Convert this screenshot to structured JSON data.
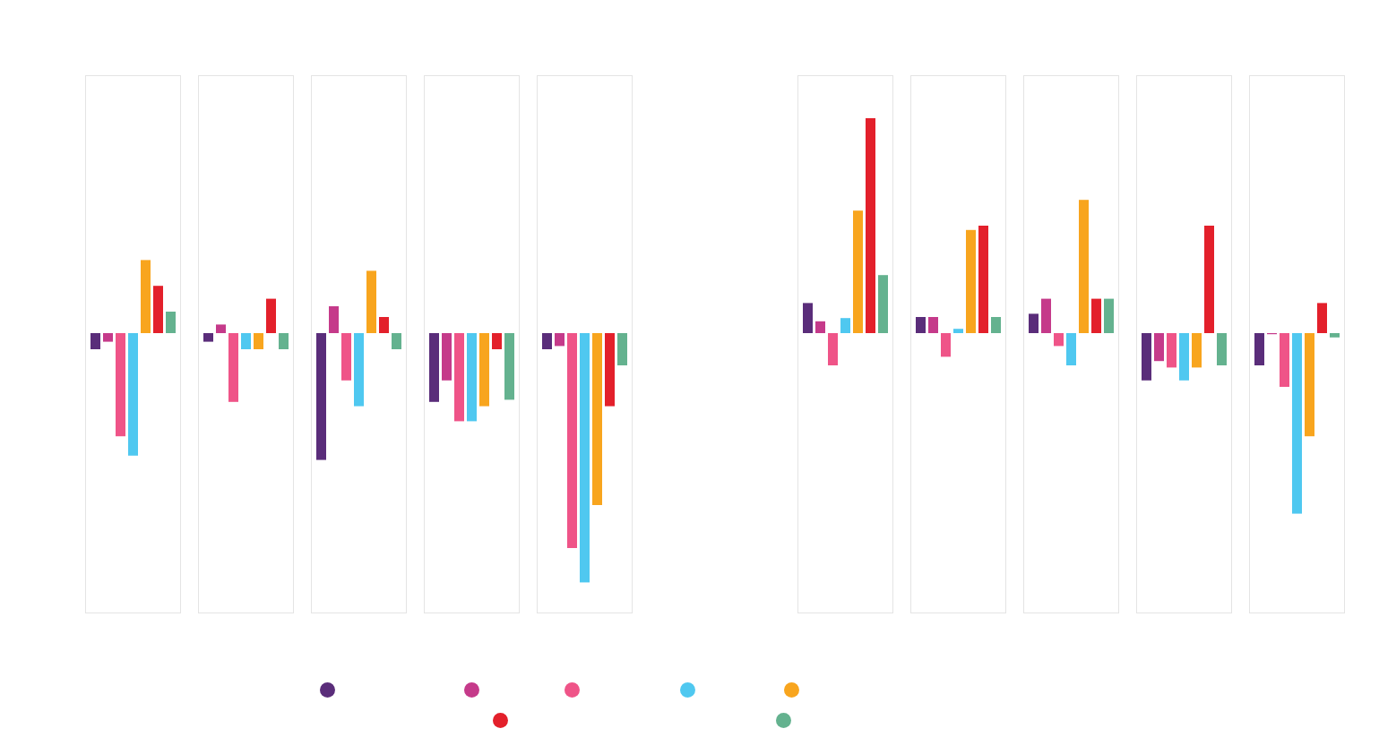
{
  "chart_data": [
    {
      "type": "bar",
      "categories": [
        null,
        null,
        null,
        null,
        null
      ],
      "ylim": [
        -13,
        12
      ],
      "yticks": [],
      "tick_labels": false,
      "series": [
        {
          "color": "#5a2d7a",
          "values": [
            -0.75,
            -0.4,
            -5.9,
            -3.2,
            -0.75
          ]
        },
        {
          "color": "#c53a8a",
          "values": [
            -0.4,
            0.4,
            1.25,
            -2.2,
            -0.6
          ]
        },
        {
          "color": "#ef5488",
          "values": [
            -4.8,
            -3.2,
            -2.2,
            -4.1,
            -10.0
          ]
        },
        {
          "color": "#4fc8f0",
          "values": [
            -5.7,
            -0.75,
            -3.4,
            -4.1,
            -11.6
          ]
        },
        {
          "color": "#f8a51e",
          "values": [
            3.4,
            -0.75,
            2.9,
            -3.4,
            -8.0
          ]
        },
        {
          "color": "#e3202b",
          "values": [
            2.2,
            1.6,
            0.75,
            -0.75,
            -3.4
          ]
        },
        {
          "color": "#64b28f",
          "values": [
            1.0,
            -0.75,
            -0.75,
            -3.1,
            -1.5
          ]
        }
      ]
    },
    {
      "type": "bar",
      "categories": [
        null,
        null,
        null,
        null,
        null
      ],
      "ylim": [
        -13,
        12
      ],
      "yticks": [],
      "tick_labels": false,
      "series": [
        {
          "color": "#5a2d7a",
          "values": [
            1.4,
            0.75,
            0.9,
            -2.2,
            -1.5
          ]
        },
        {
          "color": "#c53a8a",
          "values": [
            0.55,
            0.75,
            1.6,
            -1.3,
            -0.05
          ]
        },
        {
          "color": "#ef5488",
          "values": [
            -1.5,
            -1.1,
            -0.6,
            -1.6,
            -2.5
          ]
        },
        {
          "color": "#4fc8f0",
          "values": [
            0.7,
            0.2,
            -1.5,
            -2.2,
            -8.4
          ]
        },
        {
          "color": "#f8a51e",
          "values": [
            5.7,
            4.8,
            6.2,
            -1.6,
            -4.8
          ]
        },
        {
          "color": "#e3202b",
          "values": [
            10.0,
            5.0,
            1.6,
            5.0,
            1.4
          ]
        },
        {
          "color": "#64b28f",
          "values": [
            2.7,
            0.75,
            1.6,
            -1.5,
            -0.2
          ]
        }
      ]
    }
  ]
}
